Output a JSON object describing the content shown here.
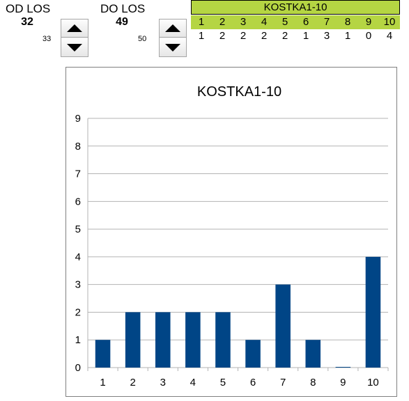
{
  "od": {
    "label": "OD LOS",
    "value": "32",
    "next": "33"
  },
  "do": {
    "label": "DO LOS",
    "value": "49",
    "next": "50"
  },
  "table": {
    "title": "KOSTKA1-10",
    "headers": [
      "1",
      "2",
      "3",
      "4",
      "5",
      "6",
      "7",
      "8",
      "9",
      "10"
    ],
    "values": [
      "1",
      "2",
      "2",
      "2",
      "2",
      "1",
      "3",
      "1",
      "0",
      "4"
    ],
    "header_color": "#b5d543"
  },
  "chart_data": {
    "type": "bar",
    "title": "KOSTKA1-10",
    "categories": [
      "1",
      "2",
      "3",
      "4",
      "5",
      "6",
      "7",
      "8",
      "9",
      "10"
    ],
    "values": [
      1,
      2,
      2,
      2,
      2,
      1,
      3,
      1,
      0,
      4
    ],
    "ylim": [
      0,
      9
    ],
    "yticks": [
      0,
      1,
      2,
      3,
      4,
      5,
      6,
      7,
      8,
      9
    ],
    "grid": true,
    "legend": "none",
    "bar_color": "#004586"
  }
}
